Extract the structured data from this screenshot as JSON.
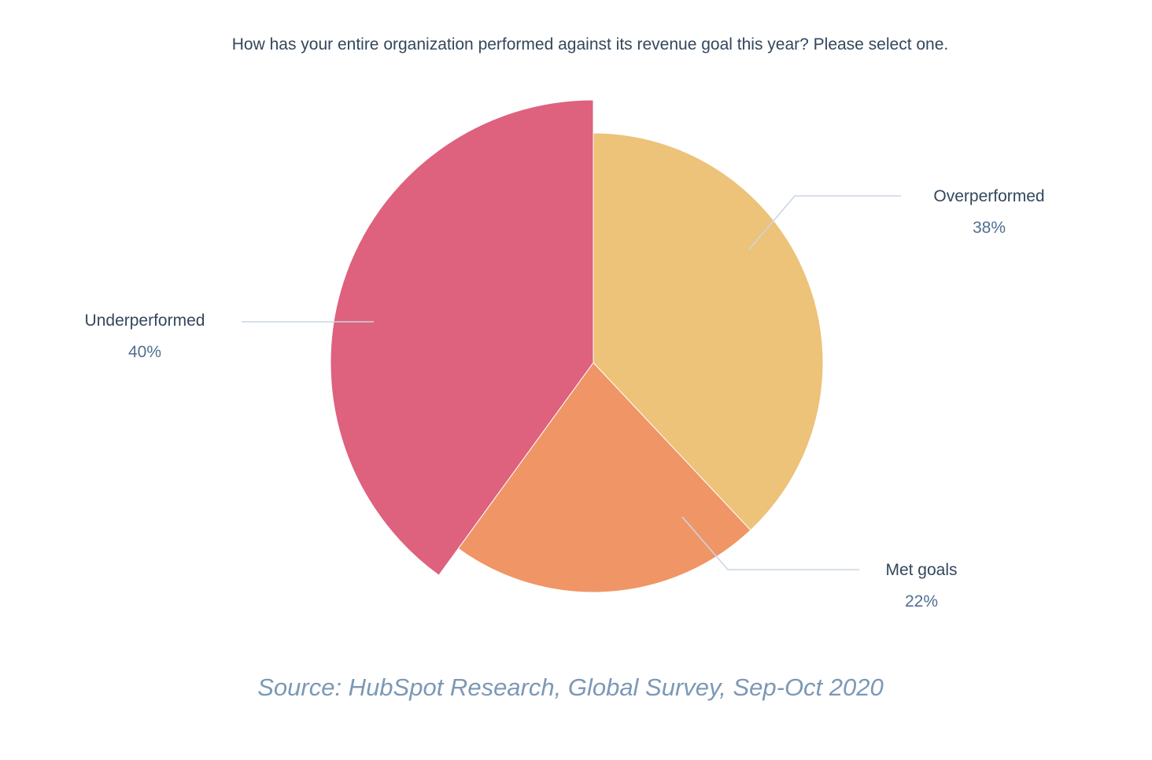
{
  "chart_data": {
    "type": "pie",
    "title": "How has your entire organization performed against its revenue goal this year? Please select one.",
    "categories": [
      "Overperformed",
      "Met goals",
      "Underperformed"
    ],
    "values": [
      38,
      22,
      40
    ],
    "value_labels": [
      "38%",
      "22%",
      "40%"
    ],
    "colors": [
      "#edc279",
      "#f09566",
      "#de617d"
    ],
    "exploded": [
      false,
      false,
      true
    ],
    "source": "Source: HubSpot Research, Global Survey, Sep-Oct 2020"
  }
}
